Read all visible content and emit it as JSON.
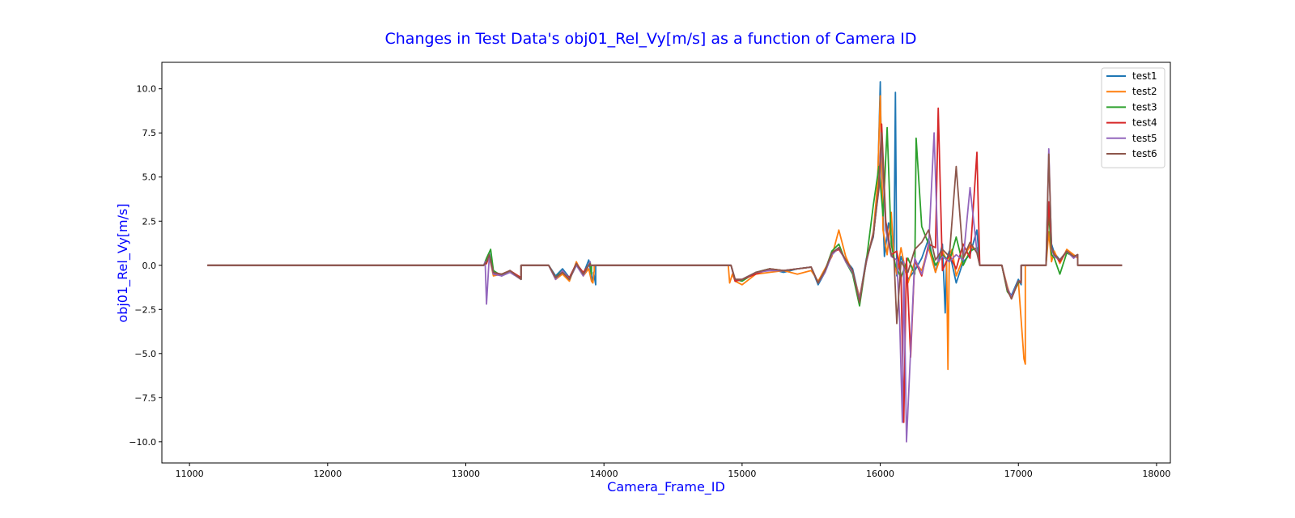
{
  "chart_data": {
    "type": "line",
    "title": "Changes in Test Data's obj01_Rel_Vy[m/s] as a function of Camera ID",
    "xlabel": "Camera_Frame_ID",
    "ylabel": "obj01_Rel_Vy[m/s]",
    "xlim": [
      10800,
      18100
    ],
    "ylim": [
      -11.2,
      11.5
    ],
    "xticks": [
      11000,
      12000,
      13000,
      14000,
      15000,
      16000,
      17000,
      18000
    ],
    "xtick_labels": [
      "11000",
      "12000",
      "13000",
      "14000",
      "15000",
      "16000",
      "17000",
      "18000"
    ],
    "yticks": [
      -10.0,
      -7.5,
      -5.0,
      -2.5,
      0.0,
      2.5,
      5.0,
      7.5,
      10.0
    ],
    "ytick_labels": [
      "−10.0",
      "−7.5",
      "−5.0",
      "−2.5",
      "0.0",
      "2.5",
      "5.0",
      "7.5",
      "10.0"
    ],
    "grid": false,
    "legend_position": "top-right",
    "series": [
      {
        "name": "test1",
        "color": "#1f77b4",
        "x": [
          11130,
          13130,
          13150,
          13170,
          13200,
          13260,
          13320,
          13400,
          13400,
          13600,
          13650,
          13700,
          13750,
          13800,
          13850,
          13890,
          13910,
          13920,
          13925,
          13940,
          13940,
          14920,
          14950,
          15000,
          15100,
          15200,
          15300,
          15400,
          15500,
          15550,
          15600,
          15650,
          15700,
          15750,
          15800,
          15850,
          15900,
          15950,
          15980,
          16000,
          16010,
          16030,
          16060,
          16100,
          16110,
          16120,
          16150,
          16200,
          16250,
          16300,
          16350,
          16400,
          16450,
          16470,
          16480,
          16500,
          16550,
          16600,
          16650,
          16700,
          16720,
          16720,
          16880,
          16920,
          16950,
          17000,
          17020,
          17020,
          17200,
          17220,
          17240,
          17260,
          17300,
          17350,
          17400,
          17430,
          17430,
          17750
        ],
        "y": [
          0.0,
          0.0,
          0.2,
          0.7,
          -0.4,
          -0.6,
          -0.3,
          -0.8,
          0.0,
          0.0,
          -0.6,
          -0.2,
          -0.7,
          0.1,
          -0.5,
          0.3,
          -0.6,
          -1.0,
          -0.4,
          -1.1,
          0.0,
          0.0,
          -0.9,
          -0.8,
          -0.4,
          -0.2,
          -0.4,
          -0.2,
          -0.1,
          -1.1,
          -0.4,
          0.6,
          1.0,
          0.3,
          -0.2,
          -1.9,
          0.4,
          1.6,
          4.0,
          10.4,
          5.0,
          0.5,
          2.4,
          0.8,
          9.8,
          -0.6,
          0.5,
          -0.8,
          -0.3,
          0.4,
          1.5,
          -0.4,
          1.2,
          -2.7,
          0.3,
          0.8,
          -1.0,
          0.2,
          0.6,
          2.0,
          0.0,
          0.0,
          0.0,
          -1.4,
          -1.7,
          -0.8,
          -1.1,
          0.0,
          0.0,
          3.5,
          1.2,
          0.7,
          0.3,
          0.8,
          0.5,
          0.6,
          0.0,
          0.0
        ]
      },
      {
        "name": "test2",
        "color": "#ff7f0e",
        "x": [
          11130,
          13130,
          13150,
          13170,
          13200,
          13260,
          13320,
          13400,
          13400,
          13600,
          13650,
          13700,
          13750,
          13800,
          13850,
          13890,
          13910,
          13920,
          13930,
          13930,
          14900,
          14910,
          14930,
          14950,
          15000,
          15100,
          15200,
          15300,
          15400,
          15500,
          15550,
          15600,
          15650,
          15700,
          15750,
          15800,
          15850,
          15900,
          15950,
          15980,
          16000,
          16020,
          16050,
          16080,
          16100,
          16120,
          16150,
          16200,
          16250,
          16300,
          16350,
          16400,
          16450,
          16480,
          16490,
          16500,
          16520,
          16550,
          16600,
          16650,
          16700,
          16720,
          16720,
          16880,
          16920,
          16950,
          17000,
          17030,
          17040,
          17050,
          17050,
          17200,
          17220,
          17240,
          17260,
          17300,
          17350,
          17400,
          17430,
          17430,
          17750
        ],
        "y": [
          0.0,
          0.0,
          0.1,
          0.5,
          -0.6,
          -0.5,
          -0.4,
          -0.7,
          0.0,
          0.0,
          -0.8,
          -0.5,
          -0.9,
          0.2,
          -0.6,
          -0.2,
          -0.9,
          -1.0,
          -0.3,
          0.0,
          0.0,
          -1.0,
          -0.5,
          -0.9,
          -1.1,
          -0.5,
          -0.4,
          -0.3,
          -0.5,
          -0.3,
          -0.9,
          -0.2,
          0.5,
          2.0,
          0.5,
          -0.4,
          -1.8,
          0.2,
          1.9,
          4.5,
          9.6,
          2.0,
          0.6,
          3.0,
          0.3,
          -0.5,
          1.0,
          -1.0,
          0.2,
          -0.3,
          1.0,
          -0.4,
          0.8,
          0.3,
          -5.9,
          0.6,
          0.9,
          -0.6,
          0.4,
          1.1,
          0.8,
          0.0,
          0.0,
          0.0,
          -1.2,
          -1.9,
          -0.9,
          -4.2,
          -5.3,
          -5.6,
          0.0,
          0.0,
          1.9,
          0.2,
          0.8,
          0.1,
          0.9,
          0.6,
          0.4,
          0.0,
          0.0
        ]
      },
      {
        "name": "test3",
        "color": "#2ca02c",
        "x": [
          11130,
          13130,
          13150,
          13180,
          13200,
          13260,
          13320,
          13400,
          13400,
          13600,
          13650,
          13700,
          13750,
          13800,
          13850,
          13900,
          13910,
          13910,
          14920,
          14950,
          15000,
          15100,
          15200,
          15300,
          15400,
          15500,
          15550,
          15600,
          15650,
          15700,
          15750,
          15800,
          15850,
          15900,
          15950,
          15990,
          16020,
          16050,
          16080,
          16110,
          16150,
          16200,
          16250,
          16260,
          16300,
          16350,
          16400,
          16450,
          16500,
          16550,
          16600,
          16650,
          16700,
          16720,
          16720,
          16880,
          16920,
          16950,
          17000,
          17020,
          17020,
          17200,
          17220,
          17240,
          17260,
          17300,
          17350,
          17400,
          17430,
          17430,
          17750
        ],
        "y": [
          0.0,
          0.0,
          0.4,
          0.9,
          -0.3,
          -0.6,
          -0.3,
          -0.8,
          0.0,
          0.0,
          -0.7,
          -0.3,
          -0.8,
          0.0,
          -0.5,
          0.2,
          -0.5,
          0.0,
          0.0,
          -0.8,
          -0.9,
          -0.4,
          -0.2,
          -0.3,
          -0.2,
          -0.1,
          -1.0,
          -0.3,
          0.8,
          1.2,
          0.2,
          -0.5,
          -2.3,
          0.3,
          3.4,
          5.6,
          2.8,
          7.8,
          1.2,
          0.0,
          -0.7,
          0.4,
          -0.5,
          7.2,
          2.2,
          1.2,
          0.0,
          0.6,
          0.2,
          1.6,
          0.0,
          0.8,
          1.0,
          0.0,
          0.0,
          0.0,
          -1.5,
          -1.8,
          -1.0,
          -0.9,
          0.0,
          0.0,
          3.0,
          0.6,
          0.4,
          -0.5,
          0.7,
          0.5,
          0.6,
          0.0,
          0.0
        ]
      },
      {
        "name": "test4",
        "color": "#d62728",
        "x": [
          11130,
          13130,
          13150,
          13170,
          13200,
          13260,
          13320,
          13400,
          13400,
          13600,
          13650,
          13700,
          13750,
          13800,
          13850,
          13900,
          13900,
          14920,
          14950,
          15000,
          15100,
          15200,
          15300,
          15400,
          15500,
          15550,
          15600,
          15650,
          15700,
          15750,
          15800,
          15850,
          15900,
          15950,
          15990,
          16010,
          16040,
          16080,
          16120,
          16150,
          16170,
          16190,
          16220,
          16250,
          16300,
          16350,
          16400,
          16420,
          16450,
          16500,
          16550,
          16600,
          16650,
          16700,
          16720,
          16720,
          16880,
          16920,
          16950,
          17000,
          17020,
          17020,
          17200,
          17220,
          17240,
          17260,
          17300,
          17350,
          17400,
          17430,
          17430,
          17750
        ],
        "y": [
          0.0,
          0.0,
          0.1,
          0.6,
          -0.5,
          -0.5,
          -0.3,
          -0.7,
          0.0,
          0.0,
          -0.7,
          -0.4,
          -0.7,
          0.1,
          -0.4,
          0.1,
          0.0,
          0.0,
          -0.9,
          -0.8,
          -0.5,
          -0.2,
          -0.3,
          -0.2,
          -0.1,
          -1.0,
          -0.3,
          0.7,
          0.9,
          0.3,
          -0.3,
          -2.0,
          0.3,
          1.7,
          4.5,
          8.0,
          2.5,
          0.6,
          0.8,
          -0.6,
          -8.9,
          0.4,
          -5.2,
          0.3,
          -0.6,
          1.2,
          1.0,
          8.9,
          -0.3,
          0.6,
          -0.2,
          1.2,
          0.4,
          6.4,
          0.0,
          0.0,
          0.0,
          -1.4,
          -1.9,
          -0.9,
          -0.9,
          0.0,
          0.0,
          3.6,
          1.0,
          0.6,
          0.2,
          0.8,
          0.5,
          0.6,
          0.0,
          0.0
        ]
      },
      {
        "name": "test5",
        "color": "#9467bd",
        "x": [
          11130,
          13130,
          13140,
          13150,
          13170,
          13200,
          13260,
          13320,
          13400,
          13400,
          13600,
          13650,
          13700,
          13750,
          13800,
          13850,
          13900,
          13900,
          14920,
          14950,
          15000,
          15100,
          15200,
          15300,
          15400,
          15500,
          15550,
          15600,
          15650,
          15700,
          15750,
          15800,
          15850,
          15900,
          15950,
          15990,
          16010,
          16040,
          16080,
          16120,
          16140,
          16160,
          16170,
          16190,
          16250,
          16300,
          16350,
          16390,
          16420,
          16450,
          16500,
          16550,
          16600,
          16650,
          16700,
          16720,
          16720,
          16880,
          16920,
          16950,
          17000,
          17020,
          17020,
          17200,
          17220,
          17240,
          17260,
          17300,
          17350,
          17400,
          17430,
          17430,
          17750
        ],
        "y": [
          0.0,
          0.0,
          0.2,
          -2.2,
          0.5,
          -0.5,
          -0.6,
          -0.4,
          -0.8,
          0.0,
          0.0,
          -0.8,
          -0.3,
          -0.8,
          0.0,
          -0.6,
          0.2,
          0.0,
          0.0,
          -0.8,
          -0.8,
          -0.4,
          -0.3,
          -0.3,
          -0.2,
          -0.1,
          -1.0,
          -0.4,
          0.6,
          1.0,
          0.2,
          -0.4,
          -1.9,
          0.2,
          1.8,
          4.3,
          7.0,
          2.0,
          0.5,
          0.3,
          -3.0,
          -8.9,
          0.2,
          -10.0,
          0.4,
          -0.5,
          1.0,
          7.5,
          0.2,
          0.5,
          0.2,
          0.6,
          0.3,
          4.4,
          0.8,
          0.0,
          0.0,
          0.0,
          -1.3,
          -1.8,
          -0.9,
          -1.0,
          0.0,
          0.0,
          6.6,
          0.9,
          0.5,
          0.3,
          0.8,
          0.4,
          0.6,
          0.0,
          0.0
        ]
      },
      {
        "name": "test6",
        "color": "#8c564b",
        "x": [
          11130,
          13130,
          13150,
          13170,
          13200,
          13260,
          13320,
          13400,
          13400,
          13600,
          13650,
          13700,
          13750,
          13800,
          13850,
          13900,
          13900,
          14920,
          14950,
          15000,
          15100,
          15200,
          15300,
          15400,
          15500,
          15550,
          15600,
          15650,
          15700,
          15750,
          15800,
          15850,
          15900,
          15950,
          15990,
          16010,
          16040,
          16080,
          16100,
          16120,
          16150,
          16200,
          16250,
          16300,
          16350,
          16400,
          16450,
          16500,
          16550,
          16600,
          16650,
          16700,
          16720,
          16720,
          16880,
          16920,
          16950,
          17000,
          17020,
          17020,
          17200,
          17220,
          17240,
          17260,
          17300,
          17350,
          17400,
          17430,
          17430,
          17750
        ],
        "y": [
          0.0,
          0.0,
          0.2,
          0.6,
          -0.4,
          -0.5,
          -0.3,
          -0.8,
          0.0,
          0.0,
          -0.7,
          -0.4,
          -0.8,
          0.1,
          -0.5,
          0.1,
          0.0,
          0.0,
          -0.8,
          -0.8,
          -0.4,
          -0.2,
          -0.3,
          -0.2,
          -0.1,
          -1.0,
          -0.3,
          0.7,
          1.0,
          0.3,
          -0.3,
          -2.1,
          0.3,
          1.7,
          4.4,
          7.5,
          2.3,
          0.6,
          0.4,
          -3.3,
          0.2,
          -0.4,
          0.9,
          1.3,
          2.0,
          0.3,
          0.9,
          0.5,
          5.6,
          0.4,
          1.3,
          0.7,
          0.0,
          0.0,
          0.0,
          -1.4,
          -1.9,
          -0.9,
          -1.0,
          0.0,
          0.0,
          6.3,
          1.0,
          0.6,
          0.3,
          0.8,
          0.5,
          0.6,
          0.0,
          0.0
        ]
      }
    ]
  }
}
